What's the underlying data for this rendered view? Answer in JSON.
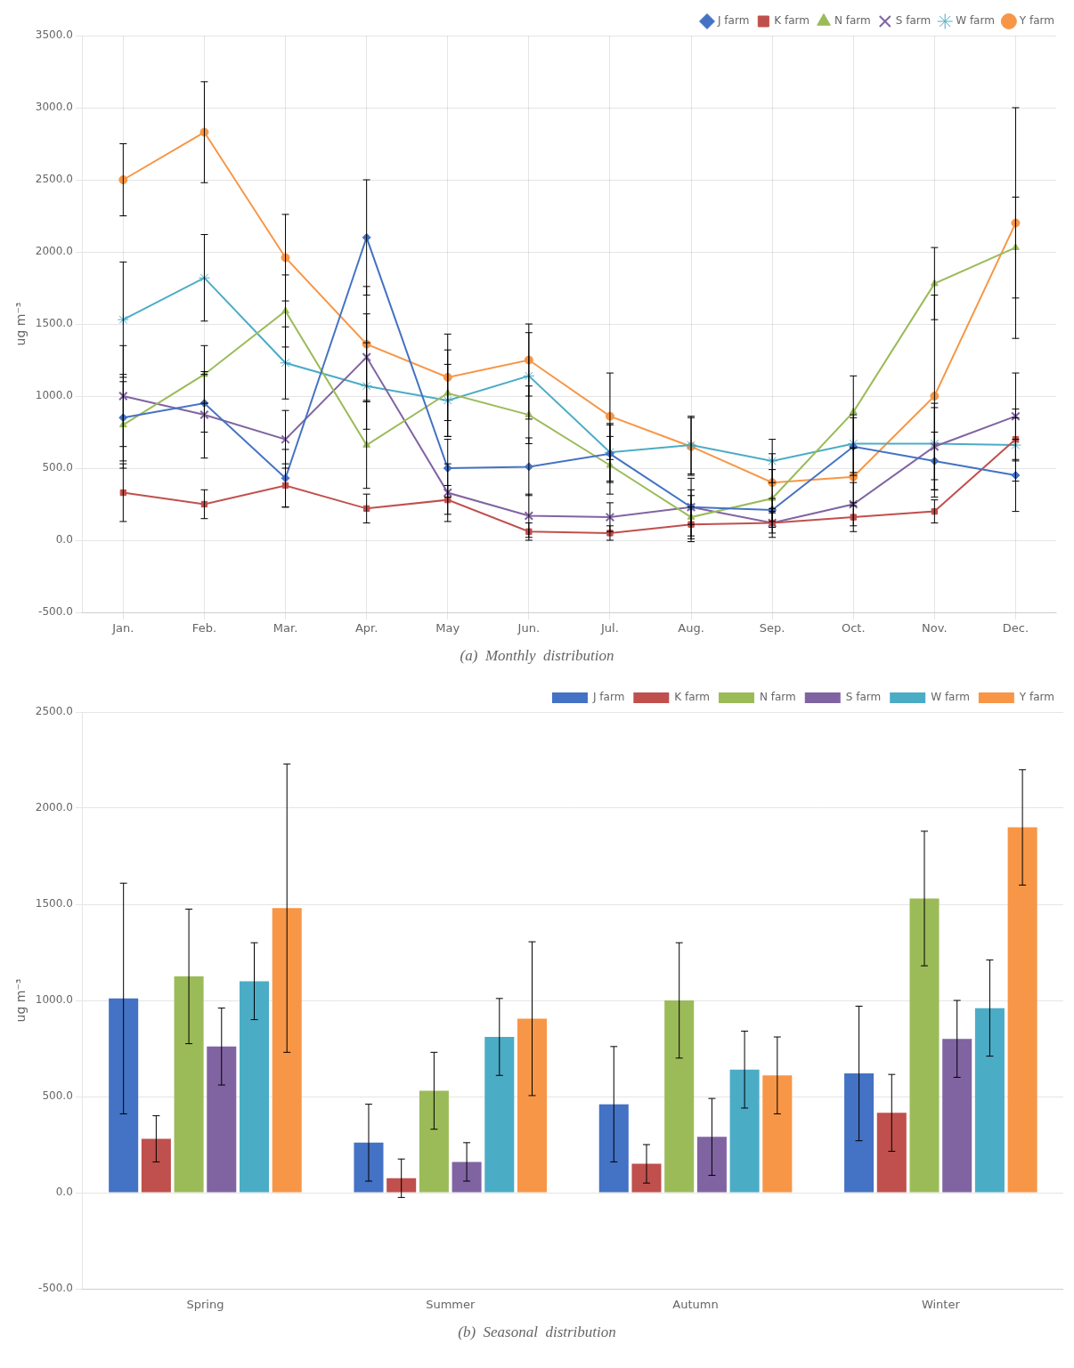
{
  "chart_data": [
    {
      "type": "line",
      "title": "(a)  Monthly  distribution",
      "ylabel": "ug m⁻³",
      "categories": [
        "Jan.",
        "Feb.",
        "Mar.",
        "Apr.",
        "May",
        "Jun.",
        "Jul.",
        "Aug.",
        "Sep.",
        "Oct.",
        "Nov.",
        "Dec."
      ],
      "series": [
        {
          "name": "J farm",
          "color": "#4472C4",
          "marker": "diamond",
          "values": [
            850,
            950,
            430,
            2100,
            500,
            510,
            600,
            230,
            210,
            650,
            550,
            450
          ],
          "errors": [
            300,
            200,
            200,
            400,
            200,
            200,
            200,
            120,
            80,
            200,
            200,
            250
          ]
        },
        {
          "name": "K farm",
          "color": "#C0504D",
          "marker": "square",
          "values": [
            330,
            250,
            380,
            220,
            280,
            60,
            50,
            110,
            120,
            160,
            200,
            700
          ],
          "errors": [
            200,
            100,
            150,
            100,
            100,
            60,
            50,
            120,
            70,
            100,
            80,
            150
          ]
        },
        {
          "name": "N farm",
          "color": "#9BBB59",
          "marker": "triangle",
          "values": [
            800,
            1150,
            1590,
            660,
            1020,
            870,
            520,
            160,
            290,
            890,
            1780,
            2030
          ],
          "errors": [
            300,
            200,
            250,
            300,
            300,
            200,
            200,
            150,
            200,
            250,
            250,
            350
          ]
        },
        {
          "name": "S farm",
          "color": "#8064A2",
          "marker": "x",
          "values": [
            1000,
            870,
            700,
            1270,
            330,
            170,
            160,
            230,
            120,
            250,
            650,
            860
          ],
          "errors": [
            350,
            300,
            200,
            300,
            200,
            150,
            100,
            200,
            100,
            150,
            300,
            300
          ]
        },
        {
          "name": "W farm",
          "color": "#4BACC6",
          "marker": "star",
          "values": [
            1530,
            1820,
            1230,
            1070,
            970,
            1140,
            610,
            660,
            550,
            670,
            670,
            660
          ],
          "errors": [
            400,
            300,
            250,
            300,
            250,
            300,
            200,
            200,
            150,
            200,
            250,
            250
          ]
        },
        {
          "name": "Y farm",
          "color": "#F79646",
          "marker": "circle",
          "values": [
            2500,
            2830,
            1960,
            1360,
            1130,
            1250,
            860,
            650,
            400,
            440,
            1000,
            2200
          ],
          "errors": [
            250,
            350,
            300,
            400,
            300,
            250,
            300,
            200,
            200,
            200,
            700,
            800
          ]
        }
      ],
      "ylim": [
        -500,
        3500
      ],
      "yticks": [
        {
          "value": -500,
          "label": "-500.0"
        },
        {
          "value": 0,
          "label": "0.0"
        },
        {
          "value": 500,
          "label": "500.0"
        },
        {
          "value": 1000,
          "label": "1000.0"
        },
        {
          "value": 1500,
          "label": "1500.0"
        },
        {
          "value": 2000,
          "label": "2000.0"
        },
        {
          "value": 2500,
          "label": "2500.0"
        },
        {
          "value": 3000,
          "label": "3000.0"
        },
        {
          "value": 3500,
          "label": "3500.0"
        }
      ],
      "grid": true,
      "legend": "upper right"
    },
    {
      "type": "bar",
      "title": "(b)  Seasonal  distribution",
      "ylabel": "ug m⁻³",
      "categories": [
        "Spring",
        "Summer",
        "Autumn",
        "Winter"
      ],
      "series": [
        {
          "name": "J farm",
          "color": "#4472C4",
          "values": [
            1010,
            260,
            460,
            620
          ],
          "errors": [
            600,
            200,
            300,
            350
          ]
        },
        {
          "name": "K farm",
          "color": "#C0504D",
          "values": [
            280,
            75,
            150,
            415
          ],
          "errors": [
            120,
            100,
            100,
            200
          ]
        },
        {
          "name": "N farm",
          "color": "#9BBB59",
          "values": [
            1125,
            530,
            1000,
            1530
          ],
          "errors": [
            350,
            200,
            300,
            350
          ]
        },
        {
          "name": "S farm",
          "color": "#8064A2",
          "values": [
            760,
            160,
            290,
            800
          ],
          "errors": [
            200,
            100,
            200,
            200
          ]
        },
        {
          "name": "W farm",
          "color": "#4BACC6",
          "values": [
            1100,
            810,
            640,
            960
          ],
          "errors": [
            200,
            200,
            200,
            250
          ]
        },
        {
          "name": "Y farm",
          "color": "#F79646",
          "values": [
            1480,
            905,
            610,
            1900
          ],
          "errors": [
            750,
            400,
            200,
            300
          ]
        }
      ],
      "ylim": [
        -500,
        2500
      ],
      "yticks": [
        {
          "value": -500,
          "label": "-500.0"
        },
        {
          "value": 0,
          "label": "0.0"
        },
        {
          "value": 500,
          "label": "500.0"
        },
        {
          "value": 1000,
          "label": "1000.0"
        },
        {
          "value": 1500,
          "label": "1500.0"
        },
        {
          "value": 2000,
          "label": "2000.0"
        },
        {
          "value": 2500,
          "label": "2500.0"
        }
      ],
      "grid": "y",
      "legend": "upper right"
    }
  ]
}
